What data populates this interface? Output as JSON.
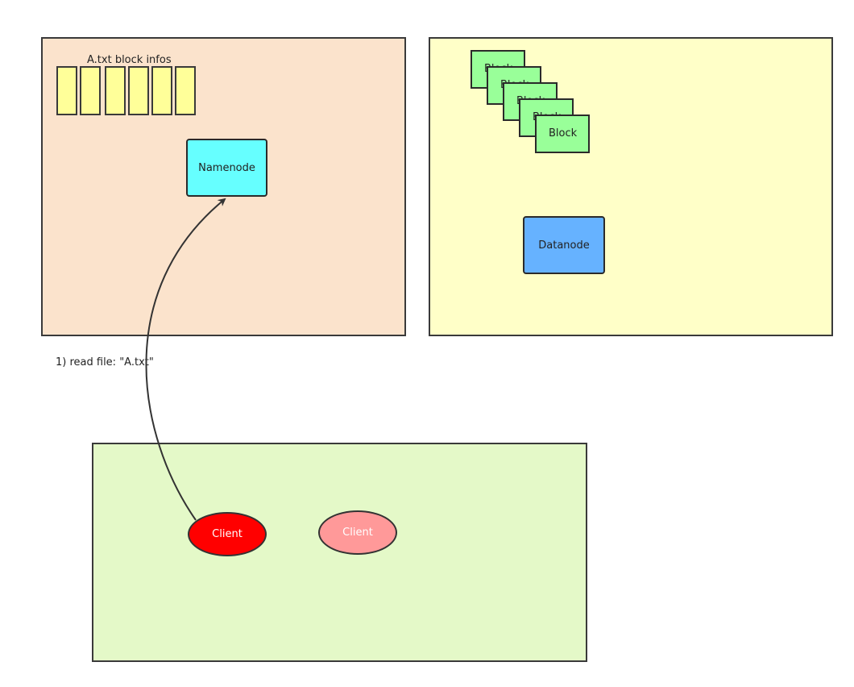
{
  "namenode_panel": {
    "block_infos_title": "A.txt block infos",
    "info_cell_count": 6,
    "namenode_label": "Namenode"
  },
  "datanode_panel": {
    "block_label": "Block",
    "datanode_label": "Datanode"
  },
  "request": {
    "label": "1) read file: \"A.txt\""
  },
  "client_panel": {
    "client_a_label": "Client",
    "client_b_label": "Client"
  },
  "colors": {
    "namenode_panel": "#fbe3cc",
    "datanode_panel": "#ffffc8",
    "client_panel": "#e4f9c8",
    "block_info_cell": "#ffff99",
    "namenode": "#66ffff",
    "datanode": "#66b2ff",
    "block": "#99ff99",
    "client_active": "#ff0000",
    "client_idle": "#ff9999"
  }
}
